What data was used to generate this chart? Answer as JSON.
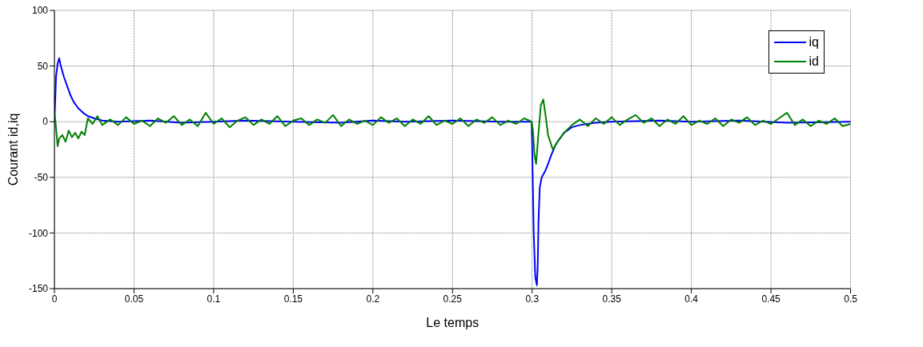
{
  "chart_data": {
    "type": "line",
    "xlabel": "Le temps",
    "ylabel": "Courant id,iq",
    "xlim": [
      0,
      0.5
    ],
    "xticks": [
      0,
      0.05,
      0.1,
      0.15,
      0.2,
      0.25,
      0.3,
      0.35,
      0.4,
      0.45,
      0.5
    ],
    "ylim": [
      -150,
      100
    ],
    "yticks": [
      -150,
      -100,
      -50,
      0,
      50,
      100
    ],
    "grid": true,
    "legend": "top right",
    "marker": "none",
    "line_style": "solid",
    "series": [
      {
        "name": "iq",
        "color": "#0000ff",
        "x": [
          0,
          0.001,
          0.002,
          0.003,
          0.004,
          0.006,
          0.008,
          0.01,
          0.012,
          0.015,
          0.018,
          0.021,
          0.025,
          0.03,
          0.04,
          0.06,
          0.08,
          0.1,
          0.12,
          0.15,
          0.18,
          0.2,
          0.22,
          0.25,
          0.28,
          0.2997,
          0.3,
          0.3005,
          0.301,
          0.302,
          0.303,
          0.3035,
          0.304,
          0.3048,
          0.306,
          0.308,
          0.31,
          0.312,
          0.315,
          0.32,
          0.325,
          0.33,
          0.34,
          0.35,
          0.38,
          0.4,
          0.43,
          0.46,
          0.5
        ],
        "values": [
          0,
          40,
          52,
          57,
          50,
          40,
          32,
          24,
          18,
          12,
          8,
          5,
          3,
          1,
          0,
          1,
          -1,
          0,
          1,
          0,
          -1,
          1,
          0,
          1,
          0,
          0,
          -20,
          -60,
          -100,
          -140,
          -147,
          -130,
          -90,
          -59,
          -50,
          -45,
          -38,
          -30,
          -20,
          -10,
          -5,
          -3,
          -1,
          0,
          1,
          0,
          1,
          -1,
          0
        ]
      },
      {
        "name": "id",
        "color": "#008000",
        "x": [
          0,
          0.001,
          0.002,
          0.003,
          0.005,
          0.007,
          0.009,
          0.011,
          0.013,
          0.015,
          0.017,
          0.019,
          0.021,
          0.024,
          0.027,
          0.03,
          0.035,
          0.04,
          0.045,
          0.05,
          0.055,
          0.06,
          0.065,
          0.07,
          0.075,
          0.08,
          0.085,
          0.09,
          0.095,
          0.1,
          0.105,
          0.11,
          0.115,
          0.12,
          0.125,
          0.13,
          0.135,
          0.14,
          0.145,
          0.15,
          0.155,
          0.16,
          0.165,
          0.17,
          0.175,
          0.18,
          0.185,
          0.19,
          0.195,
          0.2,
          0.205,
          0.21,
          0.215,
          0.22,
          0.225,
          0.23,
          0.235,
          0.24,
          0.245,
          0.25,
          0.255,
          0.26,
          0.265,
          0.27,
          0.275,
          0.28,
          0.285,
          0.29,
          0.295,
          0.2997,
          0.3005,
          0.3015,
          0.3025,
          0.304,
          0.3055,
          0.307,
          0.3085,
          0.31,
          0.313,
          0.316,
          0.32,
          0.325,
          0.33,
          0.335,
          0.34,
          0.345,
          0.35,
          0.355,
          0.36,
          0.365,
          0.37,
          0.375,
          0.38,
          0.385,
          0.39,
          0.395,
          0.4,
          0.405,
          0.41,
          0.415,
          0.42,
          0.425,
          0.43,
          0.435,
          0.44,
          0.445,
          0.45,
          0.455,
          0.46,
          0.465,
          0.47,
          0.475,
          0.48,
          0.485,
          0.49,
          0.495,
          0.5
        ],
        "values": [
          8,
          -5,
          -22,
          -15,
          -12,
          -18,
          -8,
          -14,
          -10,
          -15,
          -9,
          -12,
          3,
          -2,
          5,
          -3,
          2,
          -3,
          4,
          -2,
          1,
          -4,
          3,
          -1,
          5,
          -3,
          2,
          -4,
          8,
          -2,
          3,
          -5,
          1,
          4,
          -3,
          2,
          -2,
          5,
          -4,
          1,
          3,
          -3,
          2,
          -1,
          6,
          -4,
          2,
          -2,
          1,
          -3,
          4,
          -1,
          3,
          -4,
          2,
          -2,
          5,
          -3,
          1,
          -2,
          3,
          -4,
          2,
          -1,
          4,
          -3,
          1,
          -2,
          3,
          0,
          -8,
          -30,
          -38,
          -10,
          15,
          20,
          5,
          -12,
          -25,
          -18,
          -10,
          -3,
          2,
          -4,
          3,
          -2,
          4,
          -3,
          2,
          6,
          -1,
          3,
          -4,
          2,
          -2,
          5,
          -3,
          1,
          -2,
          3,
          -4,
          2,
          -1,
          4,
          -3,
          1,
          -2,
          3,
          8,
          -3,
          2,
          -4,
          1,
          -2,
          3,
          -4,
          -2
        ]
      }
    ]
  }
}
